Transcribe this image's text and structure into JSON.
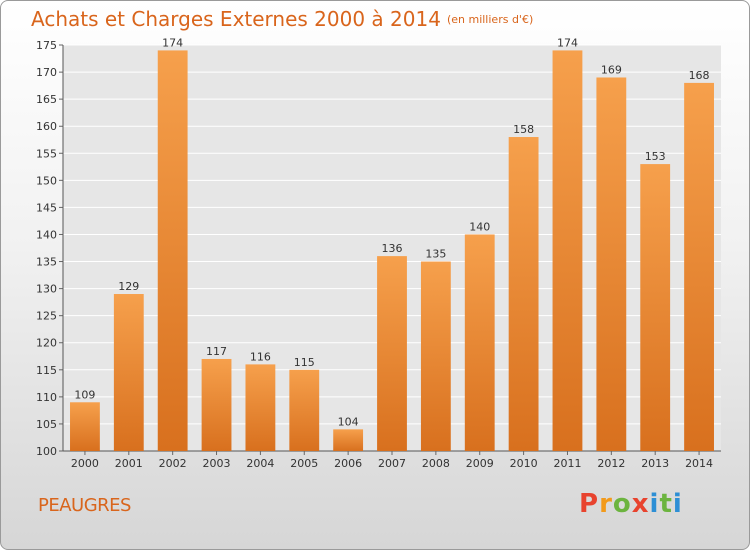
{
  "chart_data": {
    "type": "bar",
    "title": "Achats et Charges Externes 2000 à 2014",
    "subtitle": "(en milliers d'€)",
    "categories": [
      "2000",
      "2001",
      "2002",
      "2003",
      "2004",
      "2005",
      "2006",
      "2007",
      "2008",
      "2009",
      "2010",
      "2011",
      "2012",
      "2013",
      "2014"
    ],
    "values": [
      109,
      129,
      174,
      117,
      116,
      115,
      104,
      136,
      135,
      140,
      158,
      174,
      169,
      153,
      168
    ],
    "ylim": [
      100,
      175
    ],
    "yticks": [
      100,
      105,
      110,
      115,
      120,
      125,
      130,
      135,
      140,
      145,
      150,
      155,
      160,
      165,
      170,
      175
    ],
    "grid": true,
    "bar_color": "#f0923a"
  },
  "commune": "PEAUGRES",
  "logo": {
    "letters": [
      {
        "char": "P",
        "color": "#e8432e"
      },
      {
        "char": "r",
        "color": "#f29a1a"
      },
      {
        "char": "o",
        "color": "#6cb43f"
      },
      {
        "char": "x",
        "color": "#e8432e"
      },
      {
        "char": "i",
        "color": "#2d8fd5"
      },
      {
        "char": "t",
        "color": "#6cb43f"
      },
      {
        "char": "i",
        "color": "#2d8fd5"
      }
    ]
  }
}
